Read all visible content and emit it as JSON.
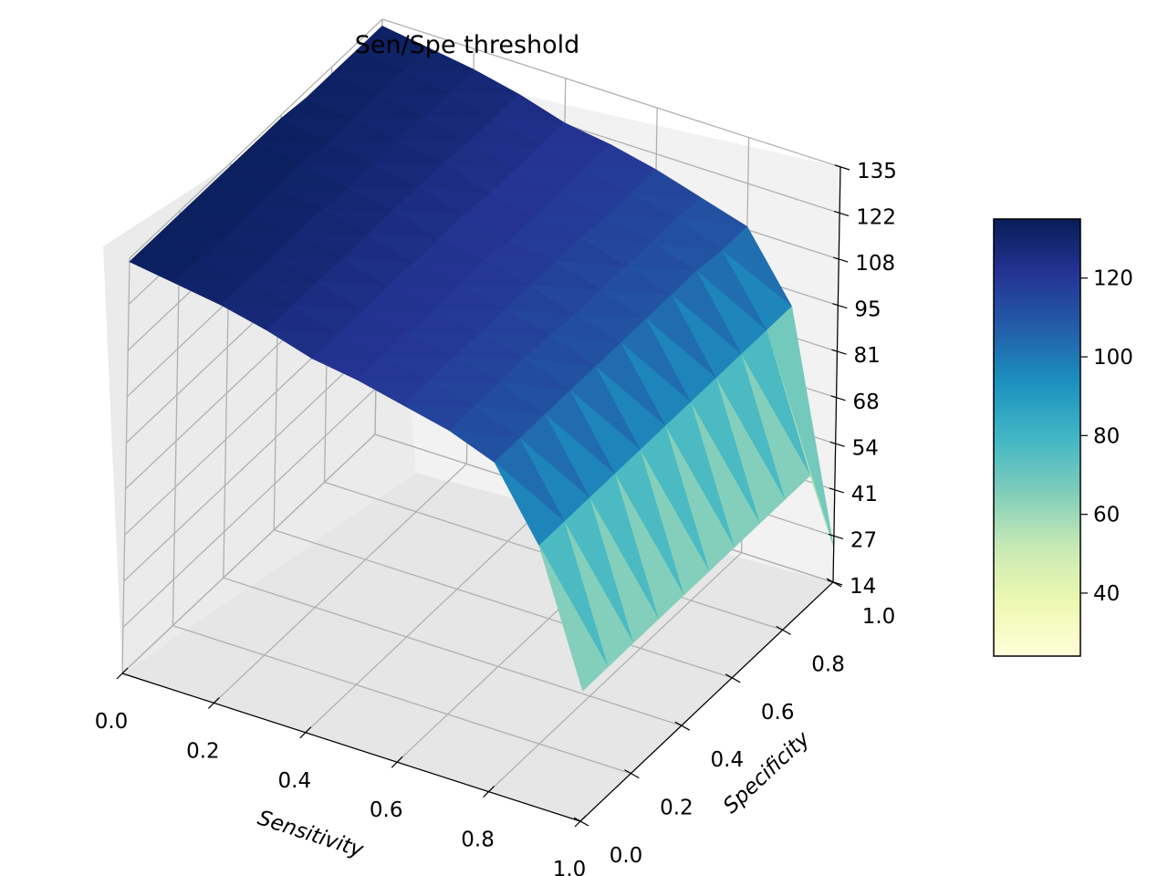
{
  "chart_data": {
    "type": "surface3d",
    "title": "Sen/Spe threshold",
    "xlabel": "Sensitivity",
    "ylabel": "Specificity",
    "zlabel": "",
    "xlim": [
      0,
      1
    ],
    "ylim": [
      0,
      1
    ],
    "zlim": [
      14,
      135
    ],
    "x_ticks": [
      "0.0",
      "0.2",
      "0.4",
      "0.6",
      "0.8",
      "1.0"
    ],
    "y_ticks": [
      "0.0",
      "0.2",
      "0.4",
      "0.6",
      "0.8",
      "1.0"
    ],
    "z_ticks": [
      "14",
      "27",
      "41",
      "54",
      "68",
      "81",
      "95",
      "108",
      "122",
      "135"
    ],
    "grid": true,
    "colormap": "YlGnBu",
    "colorbar": {
      "range": [
        24,
        135
      ],
      "ticks": [
        "40",
        "60",
        "80",
        "100",
        "120"
      ],
      "stops": [
        "#ffffd9",
        "#edf8b1",
        "#c7e9b4",
        "#7fcdbb",
        "#41b6c4",
        "#1d91c0",
        "#225ea8",
        "#253494",
        "#081d58"
      ]
    },
    "x": [
      0.0,
      0.1,
      0.2,
      0.3,
      0.4,
      0.5,
      0.6,
      0.7,
      0.8,
      0.9,
      1.0
    ],
    "y": [
      0.0,
      0.1,
      0.2,
      0.3,
      0.4,
      0.5,
      0.6,
      0.7,
      0.8,
      0.9,
      1.0
    ],
    "z_by_x": [
      [
        134,
        134,
        134,
        134,
        134,
        134,
        134,
        133,
        133,
        133,
        133
      ],
      [
        132,
        132,
        132,
        132,
        132,
        132,
        131,
        131,
        131,
        131,
        131
      ],
      [
        130,
        130,
        130,
        130,
        130,
        129,
        129,
        129,
        129,
        129,
        129
      ],
      [
        127,
        127,
        127,
        127,
        127,
        127,
        127,
        127,
        126,
        126,
        126
      ],
      [
        123,
        123,
        123,
        123,
        123,
        123,
        123,
        122,
        122,
        122,
        122
      ],
      [
        121,
        121,
        121,
        121,
        121,
        121,
        120,
        120,
        120,
        120,
        120
      ],
      [
        118,
        118,
        118,
        118,
        118,
        118,
        118,
        118,
        117,
        117,
        117
      ],
      [
        115,
        115,
        115,
        115,
        115,
        114,
        114,
        114,
        114,
        114,
        113
      ],
      [
        110,
        110,
        110,
        110,
        110,
        110,
        110,
        110,
        110,
        109,
        109
      ],
      [
        90,
        90,
        90,
        90,
        90,
        90,
        90,
        90,
        90,
        90,
        90
      ],
      [
        52,
        52,
        52,
        52,
        52,
        52,
        52,
        52,
        52,
        52,
        24
      ]
    ]
  }
}
